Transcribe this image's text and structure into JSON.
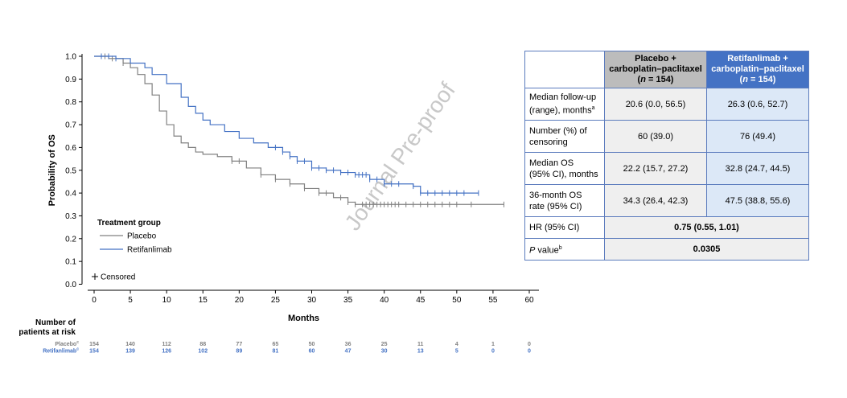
{
  "chart_data": {
    "type": "line",
    "title": "",
    "xlabel": "Months",
    "ylabel": "Probability of OS",
    "xlim": [
      0,
      60
    ],
    "ylim": [
      0.0,
      1.0
    ],
    "x_ticks": [
      "0",
      "5",
      "10",
      "15",
      "20",
      "25",
      "30",
      "35",
      "40",
      "45",
      "50",
      "55",
      "60"
    ],
    "y_ticks": [
      "0.0",
      "0.1",
      "0.2",
      "0.3",
      "0.4",
      "0.5",
      "0.6",
      "0.7",
      "0.8",
      "0.9",
      "1.0"
    ],
    "grid": false,
    "legend": {
      "title": "Treatment group",
      "position": "bottom-left",
      "censored_label": "Censored"
    },
    "series": [
      {
        "name": "Placebo",
        "color": "#808080",
        "points": [
          [
            0,
            1.0
          ],
          [
            2,
            0.99
          ],
          [
            4,
            0.97
          ],
          [
            5,
            0.95
          ],
          [
            6,
            0.92
          ],
          [
            7,
            0.88
          ],
          [
            8,
            0.83
          ],
          [
            9,
            0.76
          ],
          [
            10,
            0.7
          ],
          [
            11,
            0.65
          ],
          [
            12,
            0.62
          ],
          [
            13,
            0.6
          ],
          [
            14,
            0.58
          ],
          [
            15,
            0.57
          ],
          [
            17,
            0.56
          ],
          [
            19,
            0.54
          ],
          [
            21,
            0.51
          ],
          [
            23,
            0.48
          ],
          [
            25,
            0.46
          ],
          [
            27,
            0.44
          ],
          [
            29,
            0.42
          ],
          [
            31,
            0.4
          ],
          [
            33,
            0.38
          ],
          [
            35,
            0.36
          ],
          [
            36,
            0.35
          ],
          [
            40,
            0.35
          ],
          [
            45,
            0.35
          ],
          [
            50,
            0.35
          ],
          [
            56.5,
            0.35
          ]
        ],
        "censored_x": [
          1.5,
          2.5,
          4,
          19,
          20,
          23,
          25,
          27,
          29,
          31,
          32,
          34,
          35,
          36,
          37,
          37.5,
          38,
          38.5,
          39,
          39.5,
          40,
          40.5,
          41,
          41.5,
          42,
          43,
          44,
          45,
          46,
          47,
          48,
          49,
          50,
          52,
          56.5
        ]
      },
      {
        "name": "Retifanlimab",
        "color": "#4472c4",
        "points": [
          [
            0,
            1.0
          ],
          [
            3,
            0.99
          ],
          [
            5,
            0.97
          ],
          [
            7,
            0.95
          ],
          [
            8,
            0.92
          ],
          [
            10,
            0.88
          ],
          [
            12,
            0.82
          ],
          [
            13,
            0.78
          ],
          [
            14,
            0.75
          ],
          [
            15,
            0.72
          ],
          [
            16,
            0.7
          ],
          [
            18,
            0.67
          ],
          [
            20,
            0.64
          ],
          [
            22,
            0.62
          ],
          [
            24,
            0.6
          ],
          [
            26,
            0.58
          ],
          [
            27,
            0.56
          ],
          [
            28,
            0.54
          ],
          [
            30,
            0.51
          ],
          [
            32,
            0.5
          ],
          [
            34,
            0.49
          ],
          [
            36,
            0.48
          ],
          [
            38,
            0.46
          ],
          [
            40,
            0.44
          ],
          [
            44,
            0.43
          ],
          [
            45,
            0.4
          ],
          [
            50,
            0.4
          ],
          [
            53,
            0.4
          ]
        ],
        "censored_x": [
          1,
          2,
          3,
          25,
          26,
          27,
          28,
          29,
          30,
          31,
          32,
          33,
          34,
          35,
          36,
          36.5,
          37,
          37.5,
          38,
          39,
          40,
          41,
          42,
          44,
          45,
          46,
          47,
          48,
          49,
          50,
          51,
          53
        ]
      }
    ],
    "risk_table": {
      "title_line1": "Number of",
      "title_line2": "patients at risk",
      "rows": [
        {
          "label": "Placebo",
          "footnote": "c",
          "color": "#808080",
          "values": [
            "154",
            "140",
            "112",
            "88",
            "77",
            "65",
            "50",
            "36",
            "25",
            "11",
            "4",
            "1",
            "0"
          ]
        },
        {
          "label": "Retifanlimab",
          "footnote": "c",
          "color": "#4472c4",
          "values": [
            "154",
            "139",
            "126",
            "102",
            "89",
            "81",
            "60",
            "47",
            "30",
            "13",
            "5",
            "0",
            "0"
          ]
        }
      ]
    },
    "watermark": "Journal Pre-proof"
  },
  "table": {
    "col1_line1": "Placebo +",
    "col1_line2": "carboplatin–paclitaxel",
    "col1_n_pre": "(",
    "col1_n_it": "n",
    "col1_n_post": " = 154)",
    "col2_line1": "Retifanlimab +",
    "col2_line2": "carboplatin–paclitaxel",
    "col2_n_pre": "(",
    "col2_n_it": "n",
    "col2_n_post": " = 154)",
    "fu_label1": "Median follow-up",
    "fu_label2": "(range), months",
    "fu_sup": "a",
    "fu_placebo": "20.6 (0.0, 56.5)",
    "fu_retif": "26.3 (0.6, 52.7)",
    "cen_label1": "Number (%) of",
    "cen_label2": "censoring",
    "cen_placebo": "60 (39.0)",
    "cen_retif": "76 (49.4)",
    "mos_label1": "Median OS",
    "mos_label2": "(95% CI), months",
    "mos_placebo": "22.2 (15.7, 27.2)",
    "mos_retif": "32.8 (24.7, 44.5)",
    "m36_label1": "36-month OS",
    "m36_label2": "rate (95% CI)",
    "m36_placebo": "34.3 (26.4, 42.3)",
    "m36_retif": "47.5 (38.8, 55.6)",
    "hr_label": "HR (95% CI)",
    "hr_value": "0.75 (0.55, 1.01)",
    "p_label_it": "P",
    "p_label_rest": " value",
    "p_sup": "b",
    "p_value": "0.0305"
  }
}
